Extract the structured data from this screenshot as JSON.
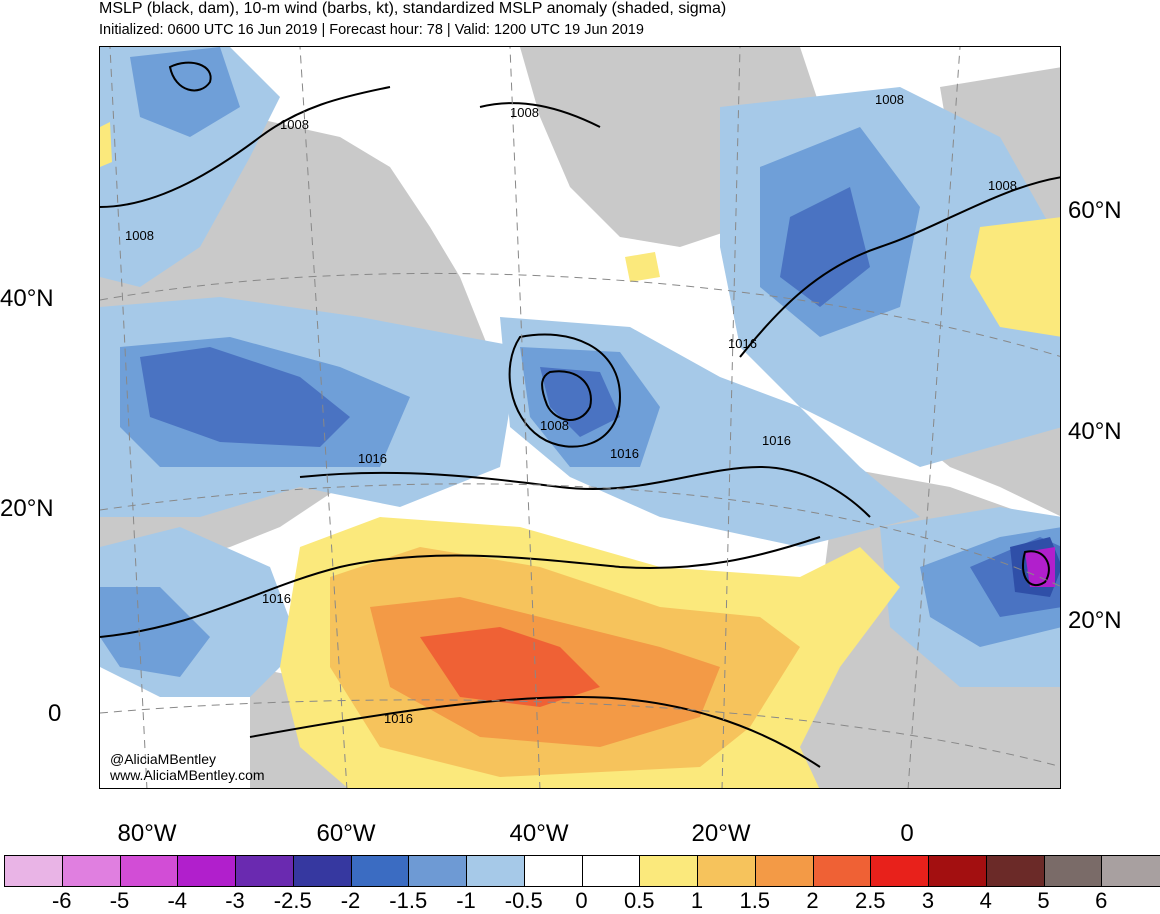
{
  "header": {
    "title": "MSLP (black, dam), 10-m wind (barbs, kt), standardized MSLP anomaly (shaded, sigma)",
    "subtitle": "Initialized: 0600 UTC 16 Jun 2019 | Forecast hour: 78 | Valid: 1200 UTC 19 Jun 2019"
  },
  "map": {
    "lat_labels_left": [
      "40°N",
      "20°N",
      "0"
    ],
    "lat_labels_right": [
      "60°N",
      "40°N",
      "20°N"
    ],
    "lon_labels": [
      "80°W",
      "60°W",
      "40°W",
      "20°W",
      "0"
    ],
    "contour_labels": [
      "1008",
      "1008",
      "1008",
      "1008",
      "1008",
      "1008",
      "1016",
      "1016",
      "1016",
      "1016",
      "1016",
      "1016"
    ],
    "credit_handle": "@AliciaMBentley",
    "credit_site": "www.AliciaMBentley.com",
    "colors": {
      "land": "#c9c9c9",
      "anom_neg_05": "#a6c9e8",
      "anom_neg_1": "#6f9fd8",
      "anom_neg_15": "#4a73c2",
      "anom_neg_2": "#2f4fa8",
      "anom_pos_05": "#fbe97c",
      "anom_pos_1": "#f6c35c",
      "anom_pos_15": "#f39a46",
      "anom_pos_2": "#ef6135"
    }
  },
  "colorbar": {
    "colors": [
      "#e9b4e6",
      "#e07fe0",
      "#d24dd6",
      "#b11fcc",
      "#6a2ab0",
      "#3638a0",
      "#3b6cc2",
      "#6e9ad4",
      "#a6c9e8",
      "#ffffff",
      "#ffffff",
      "#fbe97c",
      "#f6c35c",
      "#f39a46",
      "#ef6135",
      "#e8211b",
      "#a30f10",
      "#6b2a28",
      "#7a6b68",
      "#a8a0a0"
    ],
    "ticks": [
      "-6",
      "-5",
      "-4",
      "-3",
      "-2.5",
      "-2",
      "-1.5",
      "-1",
      "-0.5",
      "0",
      "0.5",
      "1",
      "1.5",
      "2",
      "2.5",
      "3",
      "4",
      "5",
      "6"
    ]
  }
}
